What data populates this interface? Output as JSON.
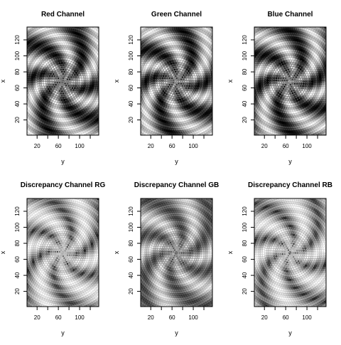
{
  "chart_data": [
    {
      "type": "heatmap",
      "title": "Red Channel",
      "xlabel": "y",
      "ylabel": "x",
      "xlim": [
        1,
        136
      ],
      "ylim": [
        1,
        136
      ],
      "x_ticks": [
        20,
        60,
        100
      ],
      "x_minor_ticks": [
        40,
        80,
        120
      ],
      "y_ticks": [
        20,
        40,
        60,
        80,
        100,
        120
      ],
      "center": [
        68,
        68
      ],
      "pattern": "spiral",
      "tone": "black-white"
    },
    {
      "type": "heatmap",
      "title": "Green Channel",
      "xlabel": "y",
      "ylabel": "x",
      "xlim": [
        1,
        136
      ],
      "ylim": [
        1,
        136
      ],
      "x_ticks": [
        20,
        60,
        100
      ],
      "x_minor_ticks": [
        40,
        80,
        120
      ],
      "y_ticks": [
        20,
        40,
        60,
        80,
        100,
        120
      ],
      "center": [
        68,
        68
      ],
      "pattern": "spiral",
      "tone": "black-white"
    },
    {
      "type": "heatmap",
      "title": "Blue Channel",
      "xlabel": "y",
      "ylabel": "x",
      "xlim": [
        1,
        136
      ],
      "ylim": [
        1,
        136
      ],
      "x_ticks": [
        20,
        60,
        100
      ],
      "x_minor_ticks": [
        40,
        80,
        120
      ],
      "y_ticks": [
        20,
        40,
        60,
        80,
        100,
        120
      ],
      "center": [
        68,
        68
      ],
      "pattern": "spiral",
      "tone": "black-white"
    },
    {
      "type": "heatmap",
      "title": "Discrepancy Channel RG",
      "xlabel": "y",
      "ylabel": "x",
      "xlim": [
        1,
        136
      ],
      "ylim": [
        1,
        136
      ],
      "x_ticks": [
        20,
        60,
        100
      ],
      "x_minor_ticks": [
        40,
        80,
        120
      ],
      "y_ticks": [
        20,
        40,
        60,
        80,
        100,
        120
      ],
      "center": [
        68,
        68
      ],
      "pattern": "spiral",
      "tone": "mostly-white"
    },
    {
      "type": "heatmap",
      "title": "Discrepancy Channel GB",
      "xlabel": "y",
      "ylabel": "x",
      "xlim": [
        1,
        136
      ],
      "ylim": [
        1,
        136
      ],
      "x_ticks": [
        20,
        60,
        100
      ],
      "x_minor_ticks": [
        40,
        80,
        120
      ],
      "y_ticks": [
        20,
        40,
        60,
        80,
        100,
        120
      ],
      "center": [
        68,
        68
      ],
      "pattern": "spiral",
      "tone": "gray"
    },
    {
      "type": "heatmap",
      "title": "Discrepancy Channel RB",
      "xlabel": "y",
      "ylabel": "x",
      "xlim": [
        1,
        136
      ],
      "ylim": [
        1,
        136
      ],
      "x_ticks": [
        20,
        60,
        100
      ],
      "x_minor_ticks": [
        40,
        80,
        120
      ],
      "y_ticks": [
        20,
        40,
        60,
        80,
        100,
        120
      ],
      "center": [
        68,
        68
      ],
      "pattern": "spiral",
      "tone": "mostly-white"
    }
  ]
}
